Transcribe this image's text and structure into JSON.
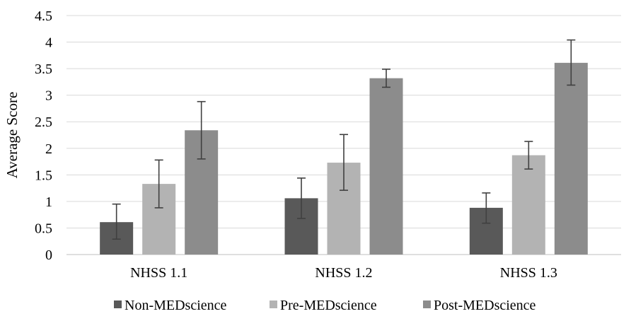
{
  "chart_data": {
    "type": "bar",
    "title": "",
    "xlabel": "",
    "ylabel": "Average Score",
    "ylim": [
      0,
      4.5
    ],
    "yticks": [
      "0",
      "0.5",
      "1",
      "1.5",
      "2",
      "2.5",
      "3",
      "3.5",
      "4",
      "4.5"
    ],
    "grid": true,
    "legend_position": "bottom",
    "categories": [
      "NHSS 1.1",
      "NHSS 1.2",
      "NHSS 1.3"
    ],
    "series": [
      {
        "name": "Non-MEDscience",
        "color": "#595959",
        "values": [
          0.61,
          1.06,
          0.88
        ],
        "error_low": [
          0.29,
          0.68,
          0.59
        ],
        "error_high": [
          0.95,
          1.44,
          1.16
        ]
      },
      {
        "name": "Pre-MEDscience",
        "color": "#b3b3b3",
        "values": [
          1.33,
          1.73,
          1.87
        ],
        "error_low": [
          0.88,
          1.21,
          1.61
        ],
        "error_high": [
          1.78,
          2.26,
          2.13
        ]
      },
      {
        "name": "Post-MEDscience",
        "color": "#8c8c8c",
        "values": [
          2.34,
          3.32,
          3.61
        ],
        "error_low": [
          1.8,
          3.15,
          3.19
        ],
        "error_high": [
          2.88,
          3.49,
          4.04
        ]
      }
    ],
    "gridline_color": "#d9d9d9",
    "error_bar_color": "#404040"
  }
}
